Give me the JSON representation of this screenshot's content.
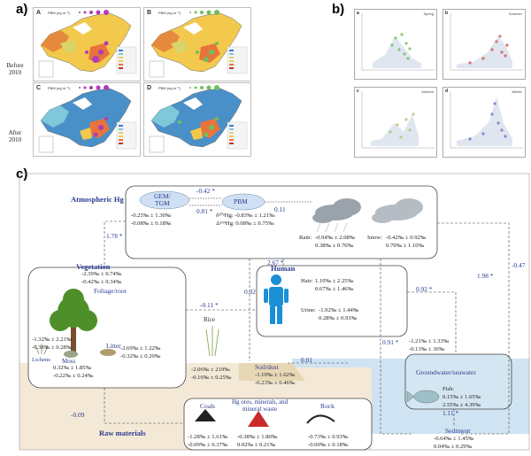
{
  "panel_labels": {
    "a": "a)",
    "b": "b)",
    "c": "c)"
  },
  "panel_a": {
    "row_labels": [
      "Before\n2010",
      "After\n2010"
    ],
    "maps": [
      {
        "letter": "A",
        "legend": "PBM (ng m⁻³)"
      },
      {
        "letter": "B",
        "legend": "PBM (ng m⁻³)"
      },
      {
        "letter": "C",
        "legend": "PBM (ng m⁻³)"
      },
      {
        "letter": "D",
        "legend": "PBM (ng m⁻³)"
      }
    ]
  },
  "panel_b": {
    "plots": [
      {
        "letter": "a",
        "season": "Spring",
        "color": "#6fbf5a"
      },
      {
        "letter": "b",
        "season": "Summer",
        "color": "#d9534f"
      },
      {
        "letter": "c",
        "season": "Autumn",
        "color": "#b8c26a"
      },
      {
        "letter": "d",
        "season": "Winter",
        "color": "#7f6bc9"
      }
    ],
    "xlabel": "Year"
  },
  "diagram": {
    "atmospheric": {
      "title": "Atmospheric Hg",
      "gem_label": "GEM/\nTGM",
      "gem_vals": [
        "-0.25‰ ± 1.30‰",
        "-0.08‰ ± 0.18‰"
      ],
      "pbm_label": "PBM",
      "pbm_vals": [
        "δ²⁰²Hg: -0.83‰ ± 1.21‰",
        "Δ¹⁹⁹Hg: 0.08‰ ± 0.75‰"
      ],
      "rain_label": "Rain:",
      "rain_vals": [
        "-0.94‰ ± 2.08‰",
        "0.38‰ ± 0.70‰"
      ],
      "snow_label": "Snow:",
      "snow_vals": [
        "-0.42‰ ± 0.92‰",
        "0.70‰ ± 1.10‰"
      ]
    },
    "fluxes": {
      "gem_pbm_top": "-0.42 *",
      "gem_pbm_mid": "0.81 *",
      "pbm_rain": "0.11",
      "atm_veg": "1.78 *",
      "atm_human_a": "2.67 *",
      "atm_human_b": "0.02",
      "veg_human": "-0.11 *",
      "human_water": "0.92 *",
      "atm_sed": "1.98 *",
      "atm_right": "-0.47",
      "soil_water": "0.01",
      "atm_soil": "0.91 *",
      "fish_sed": "1.11 *",
      "veg_raw": "-0.09"
    },
    "vegetation": {
      "title": "Vegetation",
      "vals": [
        "-2.39‰ ± 0.74‰",
        "-0.42‰ ± 0.34‰"
      ],
      "foliage": "Foliage/root",
      "lichens_vals": [
        "-1.32‰ ± 2.21‰",
        "-0.38‰ ± 0.28‰"
      ],
      "lichens": "Lichens",
      "moss": "Moss",
      "moss_vals": [
        "0.32‰ ± 1.85‰",
        "-0.22‰ ± 0.24‰"
      ],
      "litter": "Litter",
      "litter_vals": [
        "-2.69‰ ± 1.22‰",
        "-0.32‰ ± 0.29‰"
      ]
    },
    "rice": {
      "label": "Rice",
      "vals": [
        "-2.06‰ ± 219‰",
        "-0.16‰ ± 0.25‰"
      ]
    },
    "human": {
      "title": "Human",
      "hair_label": "Hair:",
      "hair_vals": [
        "1.10‰ ± 2.25‰",
        "0.67‰ ± 1.46‰"
      ],
      "urine_label": "Urine:",
      "urine_vals": [
        "-1.92‰ ± 1.44‰",
        "0.28‰ ± 0.93‰"
      ]
    },
    "soil": {
      "label": "Soil/dust",
      "vals": [
        "-1.10‰ ± 1.62‰",
        "-0.23‰ ± 0.46‰"
      ]
    },
    "water": {
      "vals_left": [
        "-1.21‰ ± 1.33‰",
        "-0.13‰ ± 36‰"
      ],
      "label": "Groundwater/seawater",
      "fish_label": "Fish:",
      "fish_vals": [
        "0.15‰ ± 1.65‰",
        "2.55‰ ± 4.39‰"
      ],
      "sediment_label": "Sediment",
      "sediment_vals": [
        "-0.64‰ ± 1.45‰",
        "0.04‰ ± 0.29‰"
      ]
    },
    "raw": {
      "title": "Raw materials",
      "coals": "Coals",
      "coals_vals": [
        "-1.28‰ ± 1.61‰",
        "-0.09‰ ± 0.37‰"
      ],
      "ores": "Hg ores, minerals, and\nmineral waste",
      "ores_vals": [
        "-0.38‰ ± 1.80‰",
        "0.02‰ ± 0.21‰"
      ],
      "rock": "Rock",
      "rock_vals": [
        "-0.73‰ ± 0.93‰",
        "-0.00‰ ± 0.18‰"
      ]
    }
  }
}
